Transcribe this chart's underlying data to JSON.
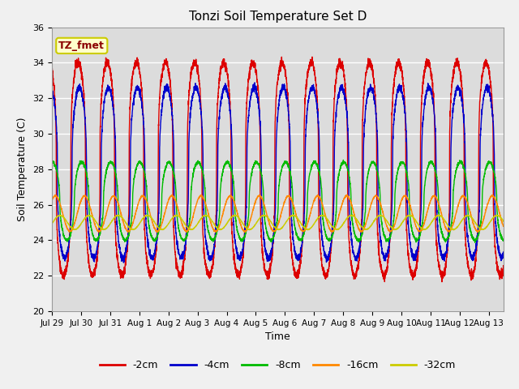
{
  "title": "Tonzi Soil Temperature Set D",
  "xlabel": "Time",
  "ylabel": "Soil Temperature (C)",
  "ylim": [
    20,
    36
  ],
  "annotation_text": "TZ_fmet",
  "annotation_color": "#8B0000",
  "annotation_bg": "#FFFFCC",
  "annotation_border": "#CCCC00",
  "background_color": "#DCDCDC",
  "grid_color": "#FFFFFF",
  "series": [
    {
      "label": "-2cm",
      "color": "#DD0000",
      "mean": 28.0,
      "amplitude": 6.0,
      "phase_lag": 0.0,
      "decay": 0.0
    },
    {
      "label": "-4cm",
      "color": "#0000CC",
      "mean": 27.8,
      "amplitude": 4.8,
      "phase_lag": 0.04,
      "decay": 0.0
    },
    {
      "label": "-8cm",
      "color": "#00BB00",
      "mean": 26.2,
      "amplitude": 2.2,
      "phase_lag": 0.12,
      "decay": 0.0
    },
    {
      "label": "-16cm",
      "color": "#FF8800",
      "mean": 25.5,
      "amplitude": 1.0,
      "phase_lag": 0.22,
      "decay": 0.0
    },
    {
      "label": "-32cm",
      "color": "#CCCC00",
      "mean": 25.0,
      "amplitude": 0.4,
      "phase_lag": 0.38,
      "decay": 0.0
    }
  ],
  "xtick_labels": [
    "Jul 29",
    "Jul 30",
    "Jul 31",
    "Aug 1",
    "Aug 2",
    "Aug 3",
    "Aug 4",
    "Aug 5",
    "Aug 6",
    "Aug 7",
    "Aug 8",
    "Aug 9",
    "Aug 10",
    "Aug 11",
    "Aug 12",
    "Aug 13"
  ],
  "xtick_positions": [
    0,
    1,
    2,
    3,
    4,
    5,
    6,
    7,
    8,
    9,
    10,
    11,
    12,
    13,
    14,
    15
  ],
  "days": 15.5,
  "n_points": 4000,
  "figwidth": 6.4,
  "figheight": 4.8,
  "dpi": 100
}
